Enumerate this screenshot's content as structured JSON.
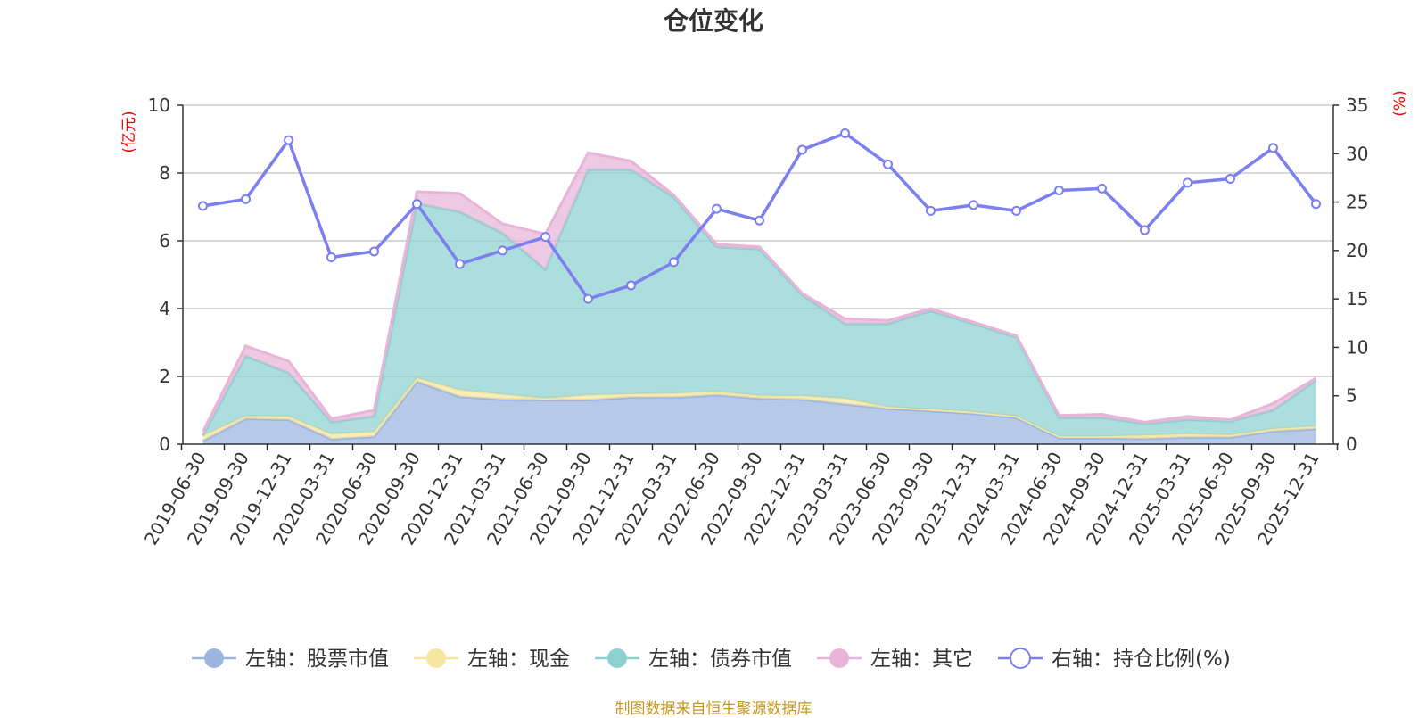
{
  "chart_data": {
    "type": "area",
    "title": "仓位变化",
    "left_axis": {
      "unit_label": "(亿元)",
      "ylim": [
        0,
        10
      ],
      "ticks": [
        0,
        2,
        4,
        6,
        8,
        10
      ]
    },
    "right_axis": {
      "unit_label": "(%)",
      "ylim": [
        0,
        35
      ],
      "ticks": [
        0,
        5,
        10,
        15,
        20,
        25,
        30,
        35
      ]
    },
    "categories": [
      "2019-06-30",
      "2019-09-30",
      "2019-12-31",
      "2020-03-31",
      "2020-06-30",
      "2020-09-30",
      "2020-12-31",
      "2021-03-31",
      "2021-06-30",
      "2021-09-30",
      "2021-12-31",
      "2022-03-31",
      "2022-06-30",
      "2022-09-30",
      "2022-12-31",
      "2023-03-31",
      "2023-06-30",
      "2023-09-30",
      "2023-12-31",
      "2024-03-31",
      "2024-06-30",
      "2024-09-30",
      "2024-12-31",
      "2025-03-31",
      "2025-06-30",
      "2025-09-30",
      "2025-12-31"
    ],
    "series": [
      {
        "name": "左轴：股票市值",
        "axis": "left",
        "color": "#9bb4e0",
        "values": [
          0.1,
          0.75,
          0.72,
          0.15,
          0.22,
          1.85,
          1.4,
          1.32,
          1.3,
          1.3,
          1.38,
          1.38,
          1.45,
          1.35,
          1.32,
          1.18,
          1.05,
          0.98,
          0.9,
          0.78,
          0.18,
          0.18,
          0.16,
          0.2,
          0.2,
          0.38,
          0.45
        ]
      },
      {
        "name": "左轴：现金",
        "axis": "left",
        "color": "#f7e6a0",
        "values": [
          0.15,
          0.08,
          0.1,
          0.15,
          0.15,
          0.1,
          0.2,
          0.15,
          0.05,
          0.15,
          0.1,
          0.12,
          0.1,
          0.08,
          0.1,
          0.17,
          0.05,
          0.05,
          0.05,
          0.05,
          0.05,
          0.05,
          0.1,
          0.1,
          0.07,
          0.07,
          0.08
        ]
      },
      {
        "name": "左轴：债券市值",
        "axis": "left",
        "color": "#8ed1d1",
        "values": [
          0.0,
          1.77,
          1.28,
          0.35,
          0.45,
          5.15,
          5.25,
          4.75,
          3.8,
          6.65,
          6.62,
          5.78,
          4.27,
          4.32,
          2.98,
          2.2,
          2.45,
          2.9,
          2.6,
          2.32,
          0.55,
          0.55,
          0.34,
          0.42,
          0.4,
          0.55,
          1.35
        ]
      },
      {
        "name": "左轴：其它",
        "axis": "left",
        "color": "#e8b4d8",
        "values": [
          0.12,
          0.3,
          0.35,
          0.1,
          0.18,
          0.35,
          0.55,
          0.28,
          1.05,
          0.5,
          0.25,
          0.07,
          0.08,
          0.07,
          0.05,
          0.15,
          0.1,
          0.07,
          0.05,
          0.05,
          0.07,
          0.1,
          0.05,
          0.1,
          0.05,
          0.2,
          0.07
        ]
      },
      {
        "name": "右轴：持仓比例(%)",
        "axis": "right",
        "color": "#7b7ff0",
        "values": [
          24.6,
          25.3,
          31.4,
          19.3,
          19.9,
          24.8,
          18.6,
          20.0,
          21.4,
          15.0,
          16.4,
          18.8,
          24.3,
          23.1,
          30.4,
          32.1,
          28.9,
          24.1,
          24.7,
          24.1,
          26.2,
          26.4,
          22.1,
          27.0,
          27.4,
          30.6,
          24.8
        ]
      }
    ]
  },
  "legend": {
    "items": [
      {
        "label": "左轴：股票市值",
        "color": "#9bb4e0",
        "icon": "filled-circle-icon"
      },
      {
        "label": "左轴：现金",
        "color": "#f7e6a0",
        "icon": "filled-circle-icon"
      },
      {
        "label": "左轴：债券市值",
        "color": "#8ed1d1",
        "icon": "filled-circle-icon"
      },
      {
        "label": "左轴：其它",
        "color": "#e8b4d8",
        "icon": "filled-circle-icon"
      },
      {
        "label": "右轴：持仓比例(%)",
        "color": "#7b7ff0",
        "icon": "hollow-circle-icon"
      }
    ]
  },
  "footer": {
    "source": "制图数据来自恒生聚源数据库"
  },
  "colors": {
    "grid": "#cccccc",
    "axis": "#333333",
    "unit": "#ff0000",
    "footer": "#c8961e"
  }
}
